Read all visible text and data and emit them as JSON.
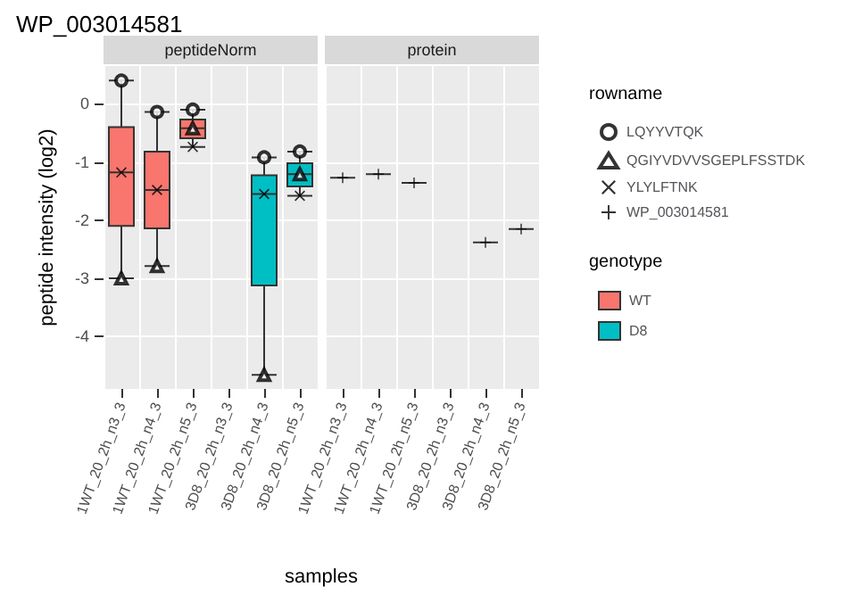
{
  "chart_data": [
    {
      "type": "box",
      "title": "WP_003014581",
      "subtitle": "peptideNorm",
      "ylabel": "peptide intensity (log2)",
      "xlabel": "samples",
      "legend_title": "rowname",
      "annotations": [
        "genotype"
      ],
      "categories": [
        "1WT_20_2h_n3_3",
        "1WT_20_2h_n4_3",
        "1WT_20_2h_n5_3",
        "3D8_20_2h_n3_3",
        "3D8_20_2h_n4_3",
        "3D8_20_2h_n5_3"
      ],
      "ylim": [
        -4.9,
        0.65
      ],
      "yticks": [
        -4,
        -3,
        -2,
        -1,
        0
      ],
      "grid": true,
      "legend": "right",
      "series": [
        {
          "name": "WT",
          "color": "#f8766d",
          "boxes": [
            {
              "low": -3.0,
              "q1": -2.1,
              "median": -1.18,
              "q3": -0.4,
              "high": 0.4
            },
            {
              "low": -2.79,
              "q1": -2.14,
              "median": -1.48,
              "q3": -0.82,
              "high": -0.14
            },
            {
              "low": -0.74,
              "q1": -0.59,
              "median": -0.42,
              "q3": -0.27,
              "high": -0.1
            },
            null,
            null,
            null
          ]
        },
        {
          "name": "D8",
          "color": "#00bfc4",
          "boxes": [
            null,
            null,
            null,
            null,
            {
              "low": -4.66,
              "q1": -3.12,
              "median": -1.55,
              "q3": -1.23,
              "high": -0.92
            },
            {
              "low": -1.58,
              "q1": -1.42,
              "median": -1.21,
              "q3": -1.02,
              "high": -0.82
            }
          ]
        },
        {
          "name": "LQYYVTQK",
          "type": "scatter",
          "marker": "circle",
          "x": [
            "1WT_20_2h_n3_3",
            "1WT_20_2h_n4_3",
            "1WT_20_2h_n5_3",
            "3D8_20_2h_n4_3",
            "3D8_20_2h_n5_3"
          ],
          "values": [
            0.4,
            -0.14,
            -0.1,
            -0.92,
            -0.82
          ]
        },
        {
          "name": "QGIYVDVVSGEPLFSSTDK",
          "type": "scatter",
          "marker": "triangle",
          "x": [
            "1WT_20_2h_n3_3",
            "1WT_20_2h_n4_3",
            "1WT_20_2h_n5_3",
            "3D8_20_2h_n4_3",
            "3D8_20_2h_n5_3"
          ],
          "values": [
            -3.0,
            -2.79,
            -0.42,
            -4.66,
            -1.21
          ]
        },
        {
          "name": "YLYLFTNK",
          "type": "scatter",
          "marker": "cross",
          "x": [
            "1WT_20_2h_n3_3",
            "1WT_20_2h_n4_3",
            "1WT_20_2h_n5_3",
            "3D8_20_2h_n4_3",
            "3D8_20_2h_n5_3"
          ],
          "values": [
            -1.18,
            -1.48,
            -0.74,
            -1.55,
            -1.58
          ]
        }
      ]
    },
    {
      "type": "box",
      "subtitle": "protein",
      "categories": [
        "1WT_20_2h_n3_3",
        "1WT_20_2h_n4_3",
        "1WT_20_2h_n5_3",
        "3D8_20_2h_n3_3",
        "3D8_20_2h_n4_3",
        "3D8_20_2h_n5_3"
      ],
      "ylim": [
        -4.9,
        0.65
      ],
      "yticks": [
        -4,
        -3,
        -2,
        -1,
        0
      ],
      "grid": true,
      "legend": "right",
      "tick_labels": "x",
      "series": [
        {
          "color": "#333333",
          "boxes": [
            {
              "low": -1.27,
              "q1": -1.27,
              "median": -1.27,
              "q3": -1.27,
              "high": -1.27
            },
            {
              "low": -1.21,
              "q1": -1.21,
              "median": -1.21,
              "q3": -1.21,
              "high": -1.21
            },
            {
              "low": -1.36,
              "q1": -1.36,
              "median": -1.36,
              "q3": -1.36,
              "high": -1.36
            },
            null,
            null,
            null
          ]
        },
        {
          "color": "#333333",
          "boxes": [
            null,
            null,
            null,
            null,
            {
              "low": -2.38,
              "q1": -2.38,
              "median": -2.38,
              "q3": -2.38,
              "high": -2.38
            },
            {
              "low": -2.15,
              "q1": -2.15,
              "median": -2.15,
              "q3": -2.15,
              "high": -2.15
            }
          ]
        },
        {
          "name": "WP_003014581",
          "type": "scatter",
          "marker": "plus",
          "x": [
            "1WT_20_2h_n3_3",
            "1WT_20_2h_n4_3",
            "1WT_20_2h_n5_3",
            "3D8_20_2h_n4_3",
            "3D8_20_2h_n5_3"
          ],
          "values": [
            -1.27,
            -1.21,
            -1.36,
            -2.38,
            -2.15
          ]
        }
      ]
    }
  ]
}
